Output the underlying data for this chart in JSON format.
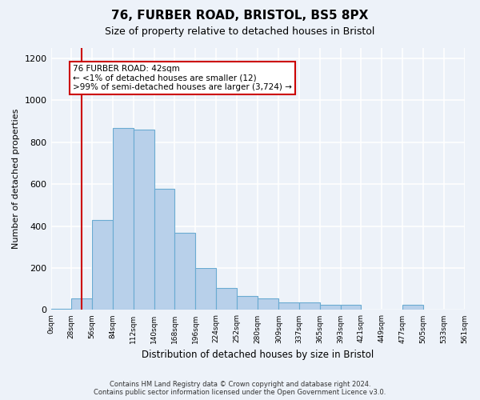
{
  "title1": "76, FURBER ROAD, BRISTOL, BS5 8PX",
  "title2": "Size of property relative to detached houses in Bristol",
  "xlabel": "Distribution of detached houses by size in Bristol",
  "ylabel": "Number of detached properties",
  "bar_values": [
    5,
    55,
    430,
    870,
    860,
    580,
    370,
    200,
    105,
    65,
    55,
    35,
    35,
    25,
    25,
    0,
    0,
    25,
    0,
    0
  ],
  "bin_edges": [
    0,
    28,
    56,
    84,
    112,
    140,
    168,
    196,
    224,
    252,
    280,
    309,
    337,
    365,
    393,
    421,
    449,
    477,
    505,
    533,
    561
  ],
  "bin_labels": [
    "0sqm",
    "28sqm",
    "56sqm",
    "84sqm",
    "112sqm",
    "140sqm",
    "168sqm",
    "196sqm",
    "224sqm",
    "252sqm",
    "280sqm",
    "309sqm",
    "337sqm",
    "365sqm",
    "393sqm",
    "421sqm",
    "449sqm",
    "477sqm",
    "505sqm",
    "533sqm",
    "561sqm"
  ],
  "bar_color": "#b8d0ea",
  "bar_edgecolor": "#6aabd2",
  "property_line_x": 42,
  "annotation_line1": "76 FURBER ROAD: 42sqm",
  "annotation_line2": "← <1% of detached houses are smaller (12)",
  "annotation_line3": ">99% of semi-detached houses are larger (3,724) →",
  "annotation_box_facecolor": "#ffffff",
  "annotation_box_edgecolor": "#cc0000",
  "vline_color": "#cc0000",
  "ylim": [
    0,
    1250
  ],
  "yticks": [
    0,
    200,
    400,
    600,
    800,
    1000,
    1200
  ],
  "background_color": "#edf2f9",
  "grid_color": "#ffffff",
  "footer_line1": "Contains HM Land Registry data © Crown copyright and database right 2024.",
  "footer_line2": "Contains public sector information licensed under the Open Government Licence v3.0."
}
